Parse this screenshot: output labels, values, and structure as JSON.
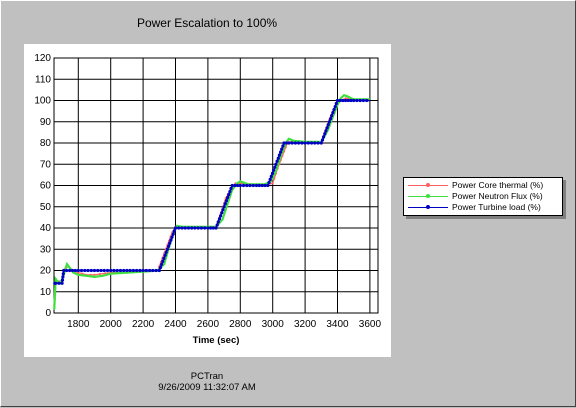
{
  "window": {
    "footer_app": "PCTran",
    "footer_timestamp": "9/26/2009 11:32:07 AM"
  },
  "chart_data": {
    "type": "line",
    "title": "Power Escalation to 100%",
    "xlabel": "Time (sec)",
    "ylabel": "",
    "xlim": [
      1650,
      3650
    ],
    "ylim": [
      0,
      120
    ],
    "x_ticks": [
      1800,
      2000,
      2200,
      2400,
      2600,
      2800,
      3000,
      3200,
      3400,
      3600
    ],
    "y_ticks": [
      0,
      10,
      20,
      30,
      40,
      50,
      60,
      70,
      80,
      90,
      100,
      110,
      120
    ],
    "grid": true,
    "legend_position": "right",
    "series": [
      {
        "name": "Power Core thermal (%)",
        "color": "#ff6060",
        "x": [
          1652,
          1660,
          1670,
          1700,
          1720,
          1740,
          1760,
          1800,
          1850,
          1900,
          2000,
          2100,
          2200,
          2290,
          2320,
          2350,
          2380,
          2400,
          2450,
          2500,
          2600,
          2650,
          2680,
          2710,
          2740,
          2770,
          2800,
          2900,
          2970,
          3000,
          3030,
          3060,
          3090,
          3120,
          3200,
          3300,
          3330,
          3360,
          3390,
          3420,
          3450,
          3500,
          3600
        ],
        "y": [
          4,
          14,
          15,
          15,
          21,
          22,
          20,
          19,
          18,
          18,
          19,
          19,
          20,
          20,
          26,
          32,
          38,
          40.5,
          40.5,
          40.5,
          40.5,
          40.5,
          47,
          54,
          58,
          61,
          61,
          60.5,
          60.5,
          61,
          68,
          74,
          80,
          81,
          80.5,
          80.5,
          87,
          93,
          98,
          100,
          101,
          100.5,
          100.5
        ]
      },
      {
        "name": "Power Neutron Flux (%)",
        "color": "#40e040",
        "x": [
          1652,
          1660,
          1670,
          1690,
          1710,
          1730,
          1750,
          1770,
          1800,
          1850,
          1900,
          1950,
          2000,
          2100,
          2200,
          2290,
          2330,
          2360,
          2390,
          2410,
          2450,
          2550,
          2650,
          2690,
          2720,
          2750,
          2780,
          2800,
          2850,
          2950,
          2990,
          3020,
          3050,
          3080,
          3100,
          3130,
          3200,
          3300,
          3340,
          3370,
          3400,
          3420,
          3440,
          3460,
          3500,
          3600
        ],
        "y": [
          2,
          16,
          15,
          14,
          18,
          23,
          21,
          19,
          18,
          17.5,
          17,
          17.5,
          18.5,
          19,
          19.5,
          20,
          23,
          31,
          38,
          41,
          40.5,
          40.5,
          40.5,
          44,
          51,
          58,
          61,
          62,
          60.5,
          60.5,
          62,
          67,
          74,
          80,
          82,
          81,
          80.5,
          80.5,
          86,
          92,
          98,
          101,
          102.5,
          102,
          100.5,
          100.5
        ]
      },
      {
        "name": "Power Turbine load (%)",
        "color": "#0000c0",
        "x": [
          1655,
          1660,
          1700,
          1710,
          1800,
          1900,
          2000,
          2100,
          2200,
          2300,
          2400,
          2500,
          2600,
          2650,
          2750,
          2800,
          2900,
          2970,
          3070,
          3100,
          3200,
          3300,
          3400,
          3450,
          3500,
          3600
        ],
        "y": [
          14,
          14,
          14,
          20,
          20,
          20,
          20,
          20,
          20,
          20,
          40,
          40,
          40,
          40,
          60,
          60,
          60,
          60,
          80,
          80,
          80,
          80,
          100,
          100,
          100,
          100
        ]
      }
    ]
  }
}
